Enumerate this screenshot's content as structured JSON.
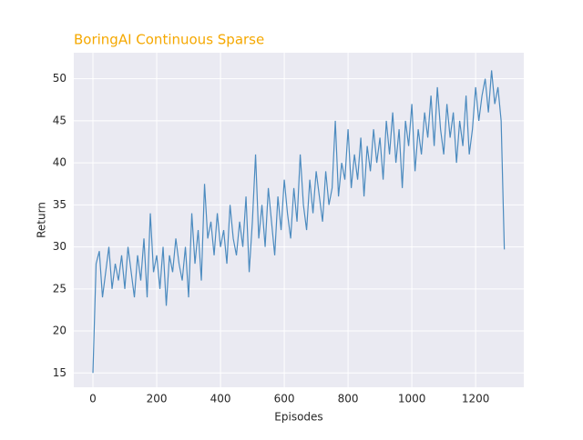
{
  "chart_data": {
    "type": "line",
    "title": "BoringAI Continuous Sparse",
    "xlabel": "Episodes",
    "ylabel": "Return",
    "x": [
      0,
      10,
      20,
      30,
      40,
      50,
      60,
      70,
      80,
      90,
      100,
      110,
      120,
      130,
      140,
      150,
      160,
      170,
      180,
      190,
      200,
      210,
      220,
      230,
      240,
      250,
      260,
      270,
      280,
      290,
      300,
      310,
      320,
      330,
      340,
      350,
      360,
      370,
      380,
      390,
      400,
      410,
      420,
      430,
      440,
      450,
      460,
      470,
      480,
      490,
      500,
      510,
      520,
      530,
      540,
      550,
      560,
      570,
      580,
      590,
      600,
      610,
      620,
      630,
      640,
      650,
      660,
      670,
      680,
      690,
      700,
      710,
      720,
      730,
      740,
      750,
      760,
      770,
      780,
      790,
      800,
      810,
      820,
      830,
      840,
      850,
      860,
      870,
      880,
      890,
      900,
      910,
      920,
      930,
      940,
      950,
      960,
      970,
      980,
      990,
      1000,
      1010,
      1020,
      1030,
      1040,
      1050,
      1060,
      1070,
      1080,
      1090,
      1100,
      1110,
      1120,
      1130,
      1140,
      1150,
      1160,
      1170,
      1180,
      1190,
      1200,
      1210,
      1220,
      1230,
      1240,
      1250,
      1260,
      1270,
      1280,
      1290
    ],
    "values": [
      15,
      28,
      29.5,
      24,
      27,
      30,
      25,
      28,
      26,
      29,
      25,
      30,
      27,
      24,
      29,
      26,
      31,
      24,
      34,
      27,
      29,
      25,
      30,
      23,
      29,
      27,
      31,
      28,
      26,
      30,
      24,
      34,
      28,
      32,
      26,
      37.5,
      31,
      33,
      29,
      34,
      30,
      32,
      28,
      35,
      31,
      29,
      33,
      30,
      36,
      27,
      33,
      41,
      31,
      35,
      30,
      37,
      33,
      29,
      36,
      32,
      38,
      34,
      31,
      37,
      33,
      41,
      35,
      32,
      38,
      34,
      39,
      36,
      33,
      39,
      35,
      37,
      45,
      36,
      40,
      38,
      44,
      37,
      41,
      38,
      43,
      36,
      42,
      39,
      44,
      40,
      43,
      38,
      45,
      41,
      46,
      40,
      44,
      37,
      45,
      42,
      47,
      39,
      44,
      41,
      46,
      43,
      48,
      42,
      49,
      44,
      41,
      47,
      43,
      46,
      40,
      45,
      42,
      48,
      41,
      44,
      49,
      45,
      48,
      50,
      46,
      51,
      47,
      49,
      45,
      29.7
    ],
    "color": "#4c8bbf",
    "xlim": [
      -60,
      1351
    ],
    "ylim": [
      13.3,
      53.1
    ],
    "xticks": [
      0,
      200,
      400,
      600,
      800,
      1000,
      1200
    ],
    "yticks": [
      15,
      20,
      25,
      30,
      35,
      40,
      45,
      50
    ],
    "grid": true
  }
}
